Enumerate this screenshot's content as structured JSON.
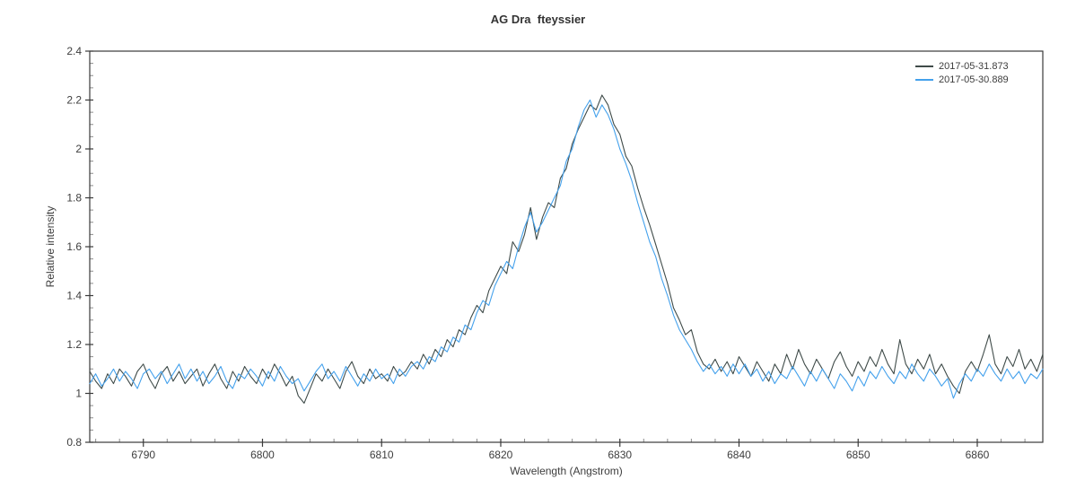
{
  "chart_data": {
    "type": "line",
    "title": "AG Dra  fteyssier",
    "xlabel": "Wavelength (Angstrom)",
    "ylabel": "Relative intensity",
    "xlim": [
      6785.5,
      6865.5
    ],
    "ylim": [
      0.8,
      2.4
    ],
    "grid": false,
    "legend_position": "top-right-inside",
    "x_major_ticks": [
      6790,
      6800,
      6810,
      6820,
      6830,
      6840,
      6850,
      6860
    ],
    "x_minor_step": 2,
    "y_major_ticks": [
      0.8,
      1.0,
      1.2,
      1.4,
      1.6,
      1.8,
      2.0,
      2.2,
      2.4
    ],
    "y_tick_labels": [
      "0.8",
      "1",
      "1.2",
      "1.4",
      "1.6",
      "1.8",
      "2",
      "2.2",
      "2.4"
    ],
    "y_minor_step": 0.05,
    "x_start": 6785.5,
    "x_step": 0.5,
    "peak_wavelength": 6828,
    "peak_value": 2.22,
    "series": [
      {
        "name": "2017-05-31.873",
        "color": "#3f4b49",
        "values": [
          1.09,
          1.05,
          1.02,
          1.08,
          1.04,
          1.1,
          1.07,
          1.03,
          1.09,
          1.12,
          1.06,
          1.02,
          1.08,
          1.11,
          1.05,
          1.09,
          1.04,
          1.07,
          1.1,
          1.03,
          1.08,
          1.12,
          1.06,
          1.02,
          1.09,
          1.05,
          1.11,
          1.07,
          1.04,
          1.1,
          1.06,
          1.12,
          1.08,
          1.03,
          1.07,
          0.99,
          0.96,
          1.02,
          1.08,
          1.05,
          1.1,
          1.06,
          1.02,
          1.09,
          1.13,
          1.07,
          1.04,
          1.1,
          1.06,
          1.08,
          1.05,
          1.11,
          1.07,
          1.09,
          1.13,
          1.1,
          1.16,
          1.12,
          1.18,
          1.15,
          1.22,
          1.19,
          1.26,
          1.24,
          1.31,
          1.36,
          1.33,
          1.42,
          1.47,
          1.52,
          1.49,
          1.62,
          1.58,
          1.65,
          1.76,
          1.63,
          1.72,
          1.78,
          1.76,
          1.88,
          1.92,
          2.02,
          2.08,
          2.13,
          2.18,
          2.16,
          2.22,
          2.18,
          2.1,
          2.06,
          1.97,
          1.93,
          1.84,
          1.76,
          1.69,
          1.61,
          1.53,
          1.45,
          1.35,
          1.3,
          1.24,
          1.26,
          1.17,
          1.12,
          1.1,
          1.14,
          1.09,
          1.13,
          1.08,
          1.15,
          1.11,
          1.07,
          1.13,
          1.09,
          1.05,
          1.12,
          1.08,
          1.16,
          1.1,
          1.18,
          1.12,
          1.08,
          1.14,
          1.1,
          1.06,
          1.13,
          1.17,
          1.11,
          1.07,
          1.13,
          1.09,
          1.15,
          1.11,
          1.18,
          1.12,
          1.08,
          1.22,
          1.12,
          1.08,
          1.14,
          1.1,
          1.16,
          1.08,
          1.12,
          1.07,
          1.03,
          1.0,
          1.09,
          1.13,
          1.09,
          1.16,
          1.24,
          1.12,
          1.08,
          1.15,
          1.11,
          1.18,
          1.1,
          1.14,
          1.09,
          1.16
        ]
      },
      {
        "name": "2017-05-30.889",
        "color": "#44a1ec",
        "values": [
          1.04,
          1.08,
          1.03,
          1.06,
          1.1,
          1.05,
          1.09,
          1.06,
          1.02,
          1.08,
          1.1,
          1.06,
          1.09,
          1.04,
          1.08,
          1.12,
          1.06,
          1.1,
          1.05,
          1.09,
          1.04,
          1.07,
          1.11,
          1.05,
          1.02,
          1.08,
          1.06,
          1.1,
          1.07,
          1.03,
          1.09,
          1.05,
          1.11,
          1.07,
          1.04,
          1.06,
          1.01,
          1.05,
          1.09,
          1.12,
          1.06,
          1.09,
          1.05,
          1.11,
          1.07,
          1.03,
          1.08,
          1.05,
          1.1,
          1.06,
          1.08,
          1.04,
          1.1,
          1.07,
          1.11,
          1.13,
          1.1,
          1.15,
          1.13,
          1.19,
          1.17,
          1.23,
          1.21,
          1.28,
          1.26,
          1.33,
          1.38,
          1.36,
          1.44,
          1.49,
          1.54,
          1.51,
          1.6,
          1.68,
          1.74,
          1.66,
          1.7,
          1.75,
          1.8,
          1.85,
          1.95,
          2.0,
          2.09,
          2.16,
          2.2,
          2.13,
          2.18,
          2.14,
          2.08,
          2.0,
          1.94,
          1.87,
          1.78,
          1.7,
          1.62,
          1.56,
          1.47,
          1.4,
          1.32,
          1.26,
          1.22,
          1.18,
          1.13,
          1.09,
          1.12,
          1.08,
          1.11,
          1.07,
          1.12,
          1.08,
          1.12,
          1.07,
          1.1,
          1.05,
          1.09,
          1.04,
          1.08,
          1.06,
          1.11,
          1.07,
          1.03,
          1.09,
          1.05,
          1.1,
          1.06,
          1.02,
          1.08,
          1.05,
          1.01,
          1.07,
          1.03,
          1.09,
          1.06,
          1.11,
          1.07,
          1.04,
          1.09,
          1.06,
          1.12,
          1.08,
          1.05,
          1.1,
          1.07,
          1.03,
          1.06,
          0.98,
          1.04,
          1.08,
          1.05,
          1.1,
          1.07,
          1.12,
          1.08,
          1.05,
          1.1,
          1.06,
          1.09,
          1.04,
          1.08,
          1.06,
          1.1
        ]
      }
    ]
  },
  "colors": {
    "background": "#ffffff",
    "axis": "#3a3a3a",
    "tick_text": "#3d3d3d",
    "minor_tick": "#8c8c8c",
    "title_text": "#333333"
  }
}
